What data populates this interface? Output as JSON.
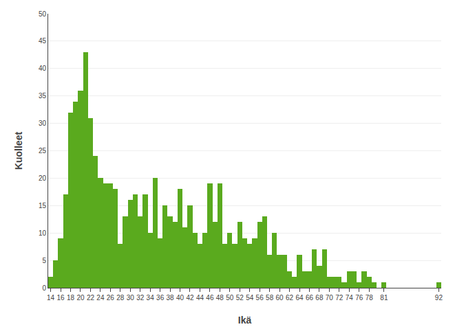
{
  "chart_data": {
    "type": "bar",
    "x": [
      14,
      15,
      16,
      17,
      18,
      19,
      20,
      21,
      22,
      23,
      24,
      25,
      26,
      27,
      28,
      29,
      30,
      31,
      32,
      33,
      34,
      35,
      36,
      37,
      38,
      39,
      40,
      41,
      42,
      43,
      44,
      45,
      46,
      47,
      48,
      49,
      50,
      51,
      52,
      53,
      54,
      55,
      56,
      57,
      58,
      59,
      60,
      61,
      62,
      63,
      64,
      65,
      66,
      67,
      68,
      69,
      70,
      71,
      72,
      73,
      74,
      75,
      76,
      77,
      78,
      79,
      80,
      81,
      82,
      83,
      84,
      85,
      86,
      87,
      88,
      89,
      90,
      91,
      92
    ],
    "values": [
      2,
      5,
      9,
      17,
      32,
      34,
      36,
      43,
      31,
      24,
      20,
      19,
      19,
      18,
      8,
      13,
      16,
      17,
      13,
      17,
      10,
      20,
      9,
      15,
      13,
      12,
      18,
      11,
      15,
      10,
      8,
      10,
      19,
      12,
      19,
      8,
      10,
      8,
      12,
      9,
      8,
      9,
      12,
      13,
      6,
      10,
      6,
      6,
      3,
      2,
      6,
      3,
      3,
      7,
      4,
      7,
      2,
      2,
      2,
      1,
      3,
      3,
      1,
      3,
      2,
      1,
      0,
      1,
      0,
      0,
      0,
      0,
      0,
      0,
      0,
      0,
      0,
      0,
      1
    ],
    "color": "#5aaa1e",
    "xlabel": "Ikä",
    "ylabel": "Kuolleet",
    "xlim": [
      13.5,
      92.5
    ],
    "xticks": [
      14,
      16,
      18,
      20,
      22,
      24,
      26,
      28,
      30,
      32,
      34,
      36,
      38,
      40,
      42,
      44,
      46,
      48,
      50,
      52,
      54,
      56,
      58,
      60,
      62,
      64,
      66,
      68,
      70,
      72,
      74,
      76,
      78,
      81,
      92
    ],
    "ylim": [
      0,
      50
    ],
    "yticks": [
      0,
      5,
      10,
      15,
      20,
      25,
      30,
      35,
      40,
      45,
      50
    ],
    "grid": "y"
  }
}
